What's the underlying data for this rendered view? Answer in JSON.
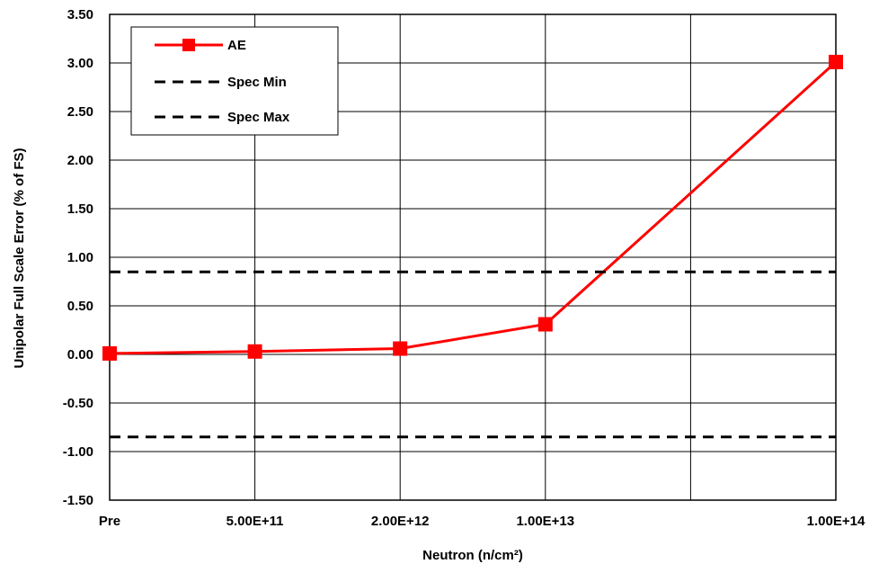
{
  "chart_data": {
    "type": "line",
    "categories": [
      "Pre",
      "5.00E+11",
      "2.00E+12",
      "1.00E+13",
      "",
      "1.00E+14"
    ],
    "xlabel": "Neutron (n/cm²)",
    "ylabel": "Unipolar Full Scale Error (% of FS)",
    "ylim": [
      -1.5,
      3.5
    ],
    "ytick_step": 0.5,
    "yticks": [
      "3.50",
      "3.00",
      "2.50",
      "2.00",
      "1.50",
      "1.00",
      "0.50",
      "0.00",
      "-0.50",
      "-1.00",
      "-1.50"
    ],
    "grid": true,
    "legend_position": "top-left",
    "series": [
      {
        "name": "AE",
        "style": "line-marker",
        "color": "#ff0000",
        "points": [
          {
            "x_index": 0,
            "y": 0.01
          },
          {
            "x_index": 1,
            "y": 0.03
          },
          {
            "x_index": 2,
            "y": 0.06
          },
          {
            "x_index": 3,
            "y": 0.31
          },
          {
            "x_index": 5,
            "y": 3.01
          }
        ]
      },
      {
        "name": "Spec Min",
        "style": "dashed",
        "color": "#000000",
        "points": [
          {
            "x_index": 0,
            "y": -0.85
          },
          {
            "x_index": 5,
            "y": -0.85
          }
        ]
      },
      {
        "name": "Spec Max",
        "style": "dashed",
        "color": "#000000",
        "points": [
          {
            "x_index": 0,
            "y": 0.85
          },
          {
            "x_index": 5,
            "y": 0.85
          }
        ]
      }
    ]
  }
}
